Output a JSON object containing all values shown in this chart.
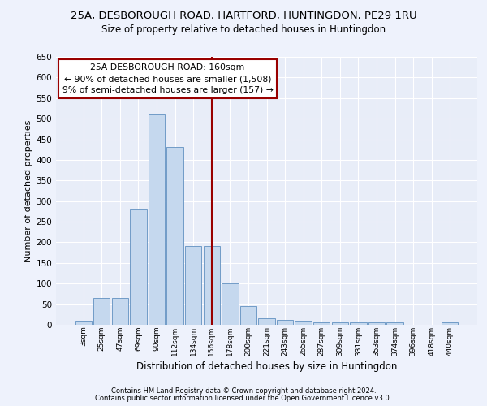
{
  "title_line1": "25A, DESBOROUGH ROAD, HARTFORD, HUNTINGDON, PE29 1RU",
  "title_line2": "Size of property relative to detached houses in Huntingdon",
  "xlabel": "Distribution of detached houses by size in Huntingdon",
  "ylabel": "Number of detached properties",
  "categories": [
    "3sqm",
    "25sqm",
    "47sqm",
    "69sqm",
    "90sqm",
    "112sqm",
    "134sqm",
    "156sqm",
    "178sqm",
    "200sqm",
    "221sqm",
    "243sqm",
    "265sqm",
    "287sqm",
    "309sqm",
    "331sqm",
    "353sqm",
    "374sqm",
    "396sqm",
    "418sqm",
    "440sqm"
  ],
  "values": [
    10,
    65,
    65,
    280,
    510,
    432,
    192,
    192,
    101,
    46,
    15,
    11,
    9,
    5,
    5,
    5,
    5,
    5,
    0,
    0,
    5
  ],
  "bar_color": "#c5d8ee",
  "bar_edge_color": "#6090c0",
  "vline_idx": 7,
  "vline_color": "#990000",
  "annotation_line1": "25A DESBOROUGH ROAD: 160sqm",
  "annotation_line2": "← 90% of detached houses are smaller (1,508)",
  "annotation_line3": "9% of semi-detached houses are larger (157) →",
  "annotation_box_facecolor": "#ffffff",
  "annotation_box_edgecolor": "#990000",
  "ylim": [
    0,
    650
  ],
  "yticks": [
    0,
    50,
    100,
    150,
    200,
    250,
    300,
    350,
    400,
    450,
    500,
    550,
    600,
    650
  ],
  "fig_bg": "#eef2fc",
  "plot_bg": "#e8edf8",
  "grid_color": "#ffffff",
  "footer_line1": "Contains HM Land Registry data © Crown copyright and database right 2024.",
  "footer_line2": "Contains public sector information licensed under the Open Government Licence v3.0."
}
